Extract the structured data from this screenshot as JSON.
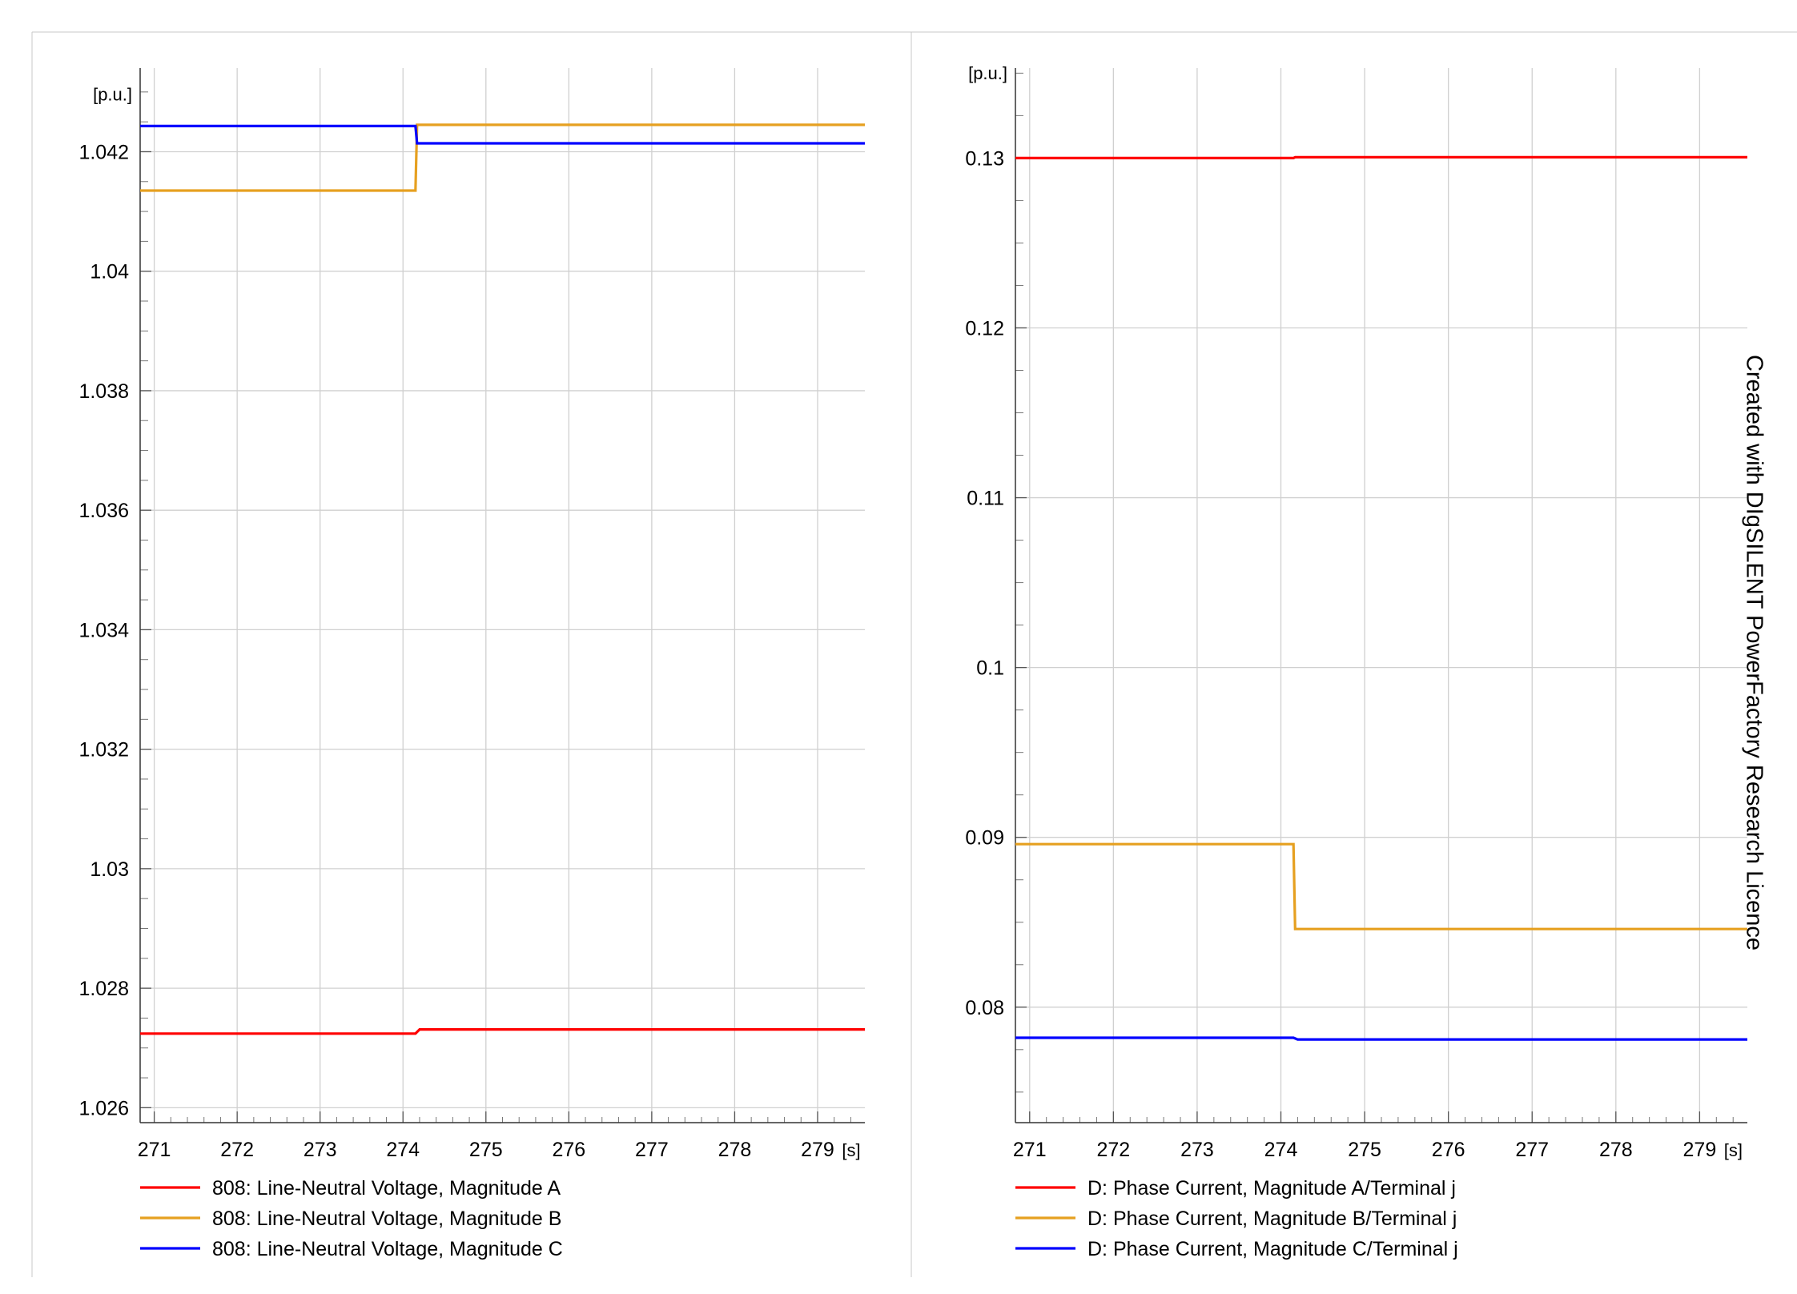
{
  "watermark": "Created with DIgSILENT PowerFactory Research Licence",
  "chart_data": [
    {
      "type": "line",
      "title": "",
      "xlabel": "",
      "ylabel": "",
      "y_unit": "[p.u.]",
      "x_unit": "[s]",
      "xlim": [
        270.83,
        279.57
      ],
      "ylim": [
        1.02575,
        1.0434
      ],
      "xticks": [
        271,
        272,
        273,
        274,
        275,
        276,
        277,
        278,
        279
      ],
      "yticks": [
        1.026,
        1.028,
        1.03,
        1.032,
        1.034,
        1.036,
        1.038,
        1.04,
        1.042
      ],
      "ytick_labels": [
        "1.026",
        "1.028",
        "1.03",
        "1.032",
        "1.034",
        "1.036",
        "1.038",
        "1.04",
        "1.042"
      ],
      "grid": true,
      "legend_position": "bottom",
      "series": [
        {
          "name": "808: Line-Neutral Voltage, Magnitude A",
          "color": "#ff0000",
          "points": [
            [
              270.83,
              1.02724
            ],
            [
              274.15,
              1.02724
            ],
            [
              274.2,
              1.02731
            ],
            [
              279.57,
              1.02731
            ]
          ]
        },
        {
          "name": "808: Line-Neutral Voltage, Magnitude B",
          "color": "#e6a020",
          "points": [
            [
              270.83,
              1.04135
            ],
            [
              274.15,
              1.04135
            ],
            [
              274.17,
              1.04245
            ],
            [
              279.57,
              1.04245
            ]
          ]
        },
        {
          "name": "808: Line-Neutral Voltage, Magnitude C",
          "color": "#0000ff",
          "points": [
            [
              270.83,
              1.04243
            ],
            [
              274.15,
              1.04243
            ],
            [
              274.17,
              1.04214
            ],
            [
              279.57,
              1.04214
            ]
          ]
        }
      ]
    },
    {
      "type": "line",
      "title": "",
      "xlabel": "",
      "ylabel": "",
      "y_unit": "[p.u.]",
      "x_unit": "[s]",
      "xlim": [
        270.83,
        279.57
      ],
      "ylim": [
        0.0732,
        0.1353
      ],
      "xticks": [
        271,
        272,
        273,
        274,
        275,
        276,
        277,
        278,
        279
      ],
      "yticks": [
        0.08,
        0.09,
        0.1,
        0.11,
        0.12,
        0.13
      ],
      "ytick_labels": [
        "0.08",
        "0.09",
        "0.1",
        "0.11",
        "0.12",
        "0.13"
      ],
      "grid": true,
      "legend_position": "bottom",
      "series": [
        {
          "name": "D: Phase Current, Magnitude A/Terminal j",
          "color": "#ff0000",
          "points": [
            [
              270.83,
              0.13
            ],
            [
              274.15,
              0.13
            ],
            [
              274.17,
              0.13005
            ],
            [
              279.57,
              0.13005
            ]
          ]
        },
        {
          "name": "D: Phase Current, Magnitude B/Terminal j",
          "color": "#e6a020",
          "points": [
            [
              270.83,
              0.0896
            ],
            [
              274.15,
              0.0896
            ],
            [
              274.17,
              0.0846
            ],
            [
              279.57,
              0.0846
            ]
          ]
        },
        {
          "name": "D: Phase Current, Magnitude C/Terminal j",
          "color": "#0000ff",
          "points": [
            [
              270.83,
              0.0782
            ],
            [
              274.15,
              0.0782
            ],
            [
              274.2,
              0.0781
            ],
            [
              279.57,
              0.0781
            ]
          ]
        }
      ]
    }
  ]
}
